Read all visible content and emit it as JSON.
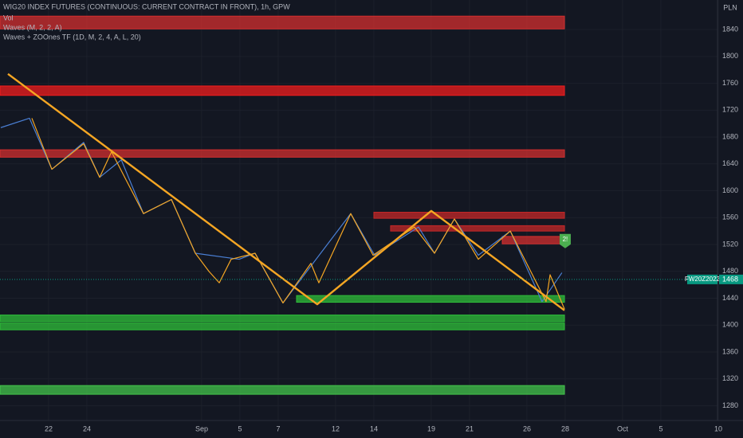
{
  "chart_data": {
    "type": "line",
    "title": "WIG20 INDEX FUTURES (CONTINUOUS: CURRENT CONTRACT IN FRONT), 1h, GPW",
    "indicators": [
      "Vol",
      "Waves (M, 2, 2, A)",
      "Waves + ZOOnes TF (1D, M, 2, 4, A, L, 20)"
    ],
    "currency": "PLN",
    "xlim": [
      -2.54,
      34.96
    ],
    "ylim": [
      1258,
      1884
    ],
    "xticks": [
      {
        "value": 0,
        "label": "22"
      },
      {
        "value": 2,
        "label": "24"
      },
      {
        "value": 8,
        "label": "Sep"
      },
      {
        "value": 10,
        "label": "5"
      },
      {
        "value": 12,
        "label": "7"
      },
      {
        "value": 15,
        "label": "12"
      },
      {
        "value": 17,
        "label": "14"
      },
      {
        "value": 20,
        "label": "19"
      },
      {
        "value": 22,
        "label": "21"
      },
      {
        "value": 25,
        "label": "26"
      },
      {
        "value": 27,
        "label": "28"
      },
      {
        "value": 30,
        "label": "Oct"
      },
      {
        "value": 32,
        "label": "5"
      },
      {
        "value": 35,
        "label": "10"
      }
    ],
    "yticks": [
      1280,
      1320,
      1360,
      1400,
      1440,
      1480,
      1520,
      1560,
      1600,
      1640,
      1680,
      1720,
      1760,
      1800,
      1840
    ],
    "grid": true,
    "zones": [
      {
        "x": [
          -2.54,
          26.96
        ],
        "y": [
          1841,
          1860
        ],
        "color": "#d32f2f"
      },
      {
        "x": [
          -2.54,
          26.96
        ],
        "y": [
          1742,
          1756
        ],
        "color": "#f21d1d"
      },
      {
        "x": [
          -2.54,
          26.96
        ],
        "y": [
          1650,
          1661
        ],
        "color": "#d32f2f"
      },
      {
        "x": [
          17,
          26.96
        ],
        "y": [
          1559,
          1568
        ],
        "color": "#c62828"
      },
      {
        "x": [
          17.875,
          26.96
        ],
        "y": [
          1540,
          1548
        ],
        "color": "#c62828"
      },
      {
        "x": [
          23.71,
          26.96
        ],
        "y": [
          1521,
          1532
        ],
        "color": "#d32f2f"
      },
      {
        "x": [
          12.96,
          26.96
        ],
        "y": [
          1434,
          1444
        ],
        "color": "#2fbf3a"
      },
      {
        "x": [
          -2.54,
          26.96
        ],
        "y": [
          1405,
          1415
        ],
        "color": "#2fbf3a"
      },
      {
        "x": [
          -2.54,
          26.96
        ],
        "y": [
          1393,
          1403
        ],
        "color": "#2fbf3a"
      },
      {
        "x": [
          -2.54,
          26.96
        ],
        "y": [
          1297,
          1310
        ],
        "color": "#43c64b"
      }
    ],
    "series": [
      {
        "color": "#4a7fd4",
        "width": 1.2,
        "x": [
          -2.5,
          -1.0,
          0.17,
          1.83,
          2.67,
          3.8,
          4.96,
          6.42,
          7.67,
          9.96,
          10.79,
          12.25,
          15.79,
          17.04,
          19.33,
          20.17,
          21.21,
          22.46,
          24.13,
          25.79,
          26.83
        ],
        "values": [
          1694,
          1708,
          1632,
          1672,
          1620,
          1646,
          1566,
          1587,
          1507,
          1498,
          1507,
          1433,
          1566,
          1504,
          1546,
          1507,
          1558,
          1504,
          1540,
          1435,
          1478
        ]
      },
      {
        "color": "#f5a623",
        "width": 1.2,
        "x": [
          -0.875,
          0.17,
          1.83,
          2.67,
          3.29,
          4.96,
          6.42,
          7.67,
          8.38,
          8.92,
          9.54,
          10.79,
          12.25,
          13.71,
          14.125,
          15.79,
          16.96,
          19.12,
          20.17,
          21.21,
          22.46,
          24.13,
          26.0,
          26.21,
          26.96
        ],
        "values": [
          1708,
          1632,
          1670,
          1620,
          1658,
          1566,
          1587,
          1507,
          1480,
          1463,
          1498,
          1507,
          1433,
          1492,
          1463,
          1566,
          1504,
          1546,
          1507,
          1558,
          1498,
          1540,
          1435,
          1475,
          1424
        ]
      },
      {
        "color": "#f5a623",
        "width": 2.4,
        "x": [
          -2.125,
          14.04,
          20,
          26.96
        ],
        "values": [
          1774,
          1431,
          1570,
          1422
        ]
      }
    ],
    "last_price": {
      "symbol": "FW20Z2022",
      "value": 1468,
      "color": "#089981"
    },
    "signal": {
      "label": "2!",
      "x": 27,
      "value": 1525,
      "color": "#4caf50"
    }
  }
}
